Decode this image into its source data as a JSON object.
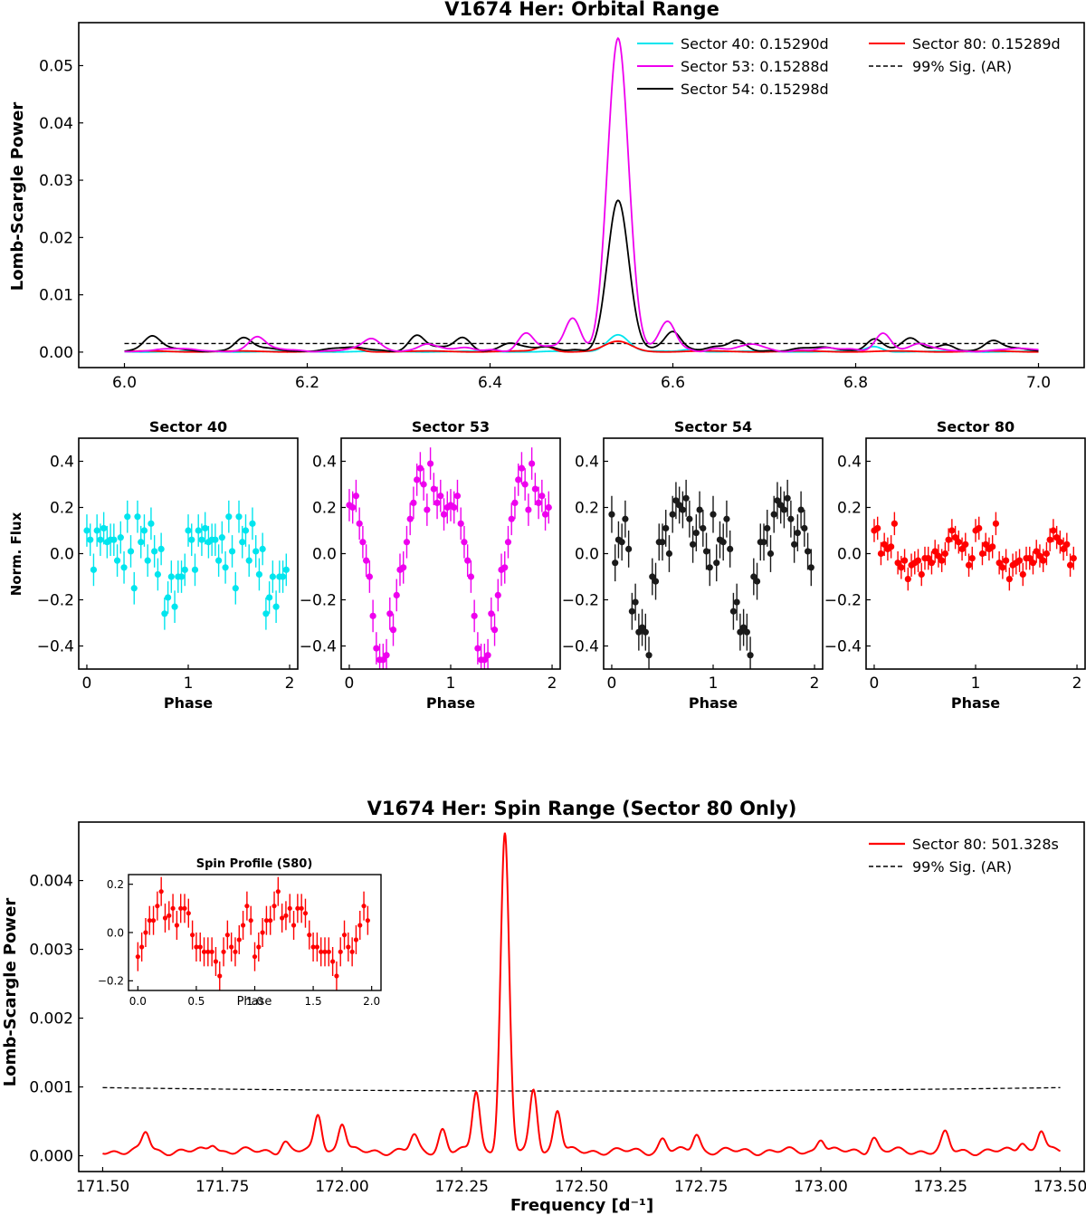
{
  "chart_data": [
    {
      "id": "orbital",
      "type": "line",
      "title": "V1674 Her: Orbital Range",
      "xlabel": "",
      "ylabel": "Lomb-Scargle Power",
      "xlim": [
        5.95,
        7.05
      ],
      "ylim": [
        -0.0027,
        0.0575
      ],
      "xticks": [
        "6.0",
        "6.2",
        "6.4",
        "6.6",
        "6.8",
        "7.0"
      ],
      "yticks": [
        "0.00",
        "0.01",
        "0.02",
        "0.03",
        "0.04",
        "0.05"
      ],
      "legend_position": "top-right",
      "peak_frequency": 6.54,
      "series": [
        {
          "name": "Sector 40: 0.15290d",
          "color": "#00e5ee",
          "peak": 0.003,
          "width": 0.016,
          "side": 0.0003,
          "base": 0.00015
        },
        {
          "name": "Sector 53: 0.15288d",
          "color": "#ee00ee",
          "peak": 0.0545,
          "width": 0.016,
          "side": 0.0048,
          "base": 0.0006
        },
        {
          "name": "Sector 54: 0.15298d",
          "color": "#000000",
          "peak": 0.0258,
          "width": 0.016,
          "side": 0.0032,
          "base": 0.0008
        },
        {
          "name": "Sector 80: 0.15289d",
          "color": "#ff0000",
          "peak": 0.0017,
          "width": 0.02,
          "side": 0.0001,
          "base": 0.0002
        }
      ],
      "significance": {
        "name": "99% Sig. (AR)",
        "color": "#000000",
        "value": 0.0015
      }
    },
    {
      "id": "phase-s40",
      "type": "scatter",
      "title": "Sector 40",
      "xlabel": "Phase",
      "ylabel": "Norm. Flux",
      "color": "#00e5ee",
      "amplitude": 0.07,
      "error": 0.07,
      "xlim": [
        -0.08,
        2.08
      ],
      "ylim": [
        -0.5,
        0.5
      ],
      "xticks": [
        "0",
        "1",
        "2"
      ],
      "yticks": [
        "0.4",
        "0.2",
        "0.0",
        "−0.2",
        "−0.4"
      ],
      "values": [
        0.1,
        0.06,
        -0.07,
        0.1,
        0.06,
        0.11,
        0.05,
        0.06,
        0.06,
        -0.03,
        0.07,
        -0.06,
        0.16,
        0.01,
        -0.15,
        0.16,
        0.05,
        0.1,
        -0.03,
        0.13,
        0.01,
        -0.09,
        0.02,
        -0.26,
        -0.19,
        -0.1,
        -0.23,
        -0.1,
        -0.1,
        -0.07
      ]
    },
    {
      "id": "phase-s53",
      "type": "scatter",
      "title": "Sector 53",
      "xlabel": "Phase",
      "ylabel": "",
      "color": "#ee00ee",
      "amplitude": 0.4,
      "error": 0.07,
      "xlim": [
        -0.08,
        2.08
      ],
      "ylim": [
        -0.5,
        0.5
      ],
      "xticks": [
        "0",
        "1",
        "2"
      ],
      "yticks": [
        "0.4",
        "0.2",
        "0.0",
        "−0.2",
        "−0.4"
      ],
      "values": [
        0.21,
        0.2,
        0.25,
        0.13,
        0.05,
        -0.03,
        -0.1,
        -0.27,
        -0.41,
        -0.46,
        -0.46,
        -0.44,
        -0.26,
        -0.33,
        -0.18,
        -0.07,
        -0.06,
        0.05,
        0.15,
        0.22,
        0.32,
        0.37,
        0.3,
        0.19,
        0.39,
        0.28,
        0.22,
        0.25,
        0.17,
        0.2
      ]
    },
    {
      "id": "phase-s54",
      "type": "scatter",
      "title": "Sector 54",
      "xlabel": "Phase",
      "ylabel": "",
      "color": "#1a1a1a",
      "amplitude": 0.37,
      "error": 0.08,
      "xlim": [
        -0.08,
        2.08
      ],
      "ylim": [
        -0.5,
        0.5
      ],
      "xticks": [
        "0",
        "1",
        "2"
      ],
      "yticks": [
        "0.4",
        "0.2",
        "0.0",
        "−0.2",
        "−0.4"
      ],
      "values": [
        0.17,
        -0.04,
        0.06,
        0.05,
        0.15,
        0.02,
        -0.25,
        -0.21,
        -0.34,
        -0.32,
        -0.34,
        -0.44,
        -0.1,
        -0.12,
        0.05,
        0.05,
        0.11,
        0.0,
        0.17,
        0.23,
        0.21,
        0.19,
        0.24,
        0.15,
        0.04,
        0.09,
        0.19,
        0.11,
        0.01,
        -0.06
      ]
    },
    {
      "id": "phase-s80",
      "type": "scatter",
      "title": "Sector 80",
      "xlabel": "Phase",
      "ylabel": "",
      "color": "#ff0000",
      "amplitude": 0.04,
      "error": 0.05,
      "xlim": [
        -0.08,
        2.08
      ],
      "ylim": [
        -0.5,
        0.5
      ],
      "xticks": [
        "0",
        "1",
        "2"
      ],
      "yticks": [
        "0.4",
        "0.2",
        "0.0",
        "−0.2",
        "−0.4"
      ],
      "values": [
        0.1,
        0.11,
        0.0,
        0.04,
        0.02,
        0.03,
        0.13,
        -0.04,
        -0.06,
        -0.03,
        -0.11,
        -0.05,
        -0.04,
        -0.03,
        -0.09,
        -0.02,
        -0.02,
        -0.04,
        0.01,
        -0.01,
        -0.03,
        0.0,
        0.06,
        0.1,
        0.07,
        0.05,
        0.02,
        0.04,
        -0.05,
        -0.02
      ]
    },
    {
      "id": "spin",
      "type": "line",
      "title": "V1674 Her: Spin Range (Sector 80 Only)",
      "xlabel": "Frequency [d⁻¹]",
      "ylabel": "Lomb-Scargle Power",
      "xlim": [
        171.45,
        173.55
      ],
      "ylim": [
        -0.00023,
        0.00485
      ],
      "xticks": [
        "171.50",
        "171.75",
        "172.00",
        "172.25",
        "172.50",
        "172.75",
        "173.00",
        "173.25",
        "173.50"
      ],
      "yticks": [
        "0.000",
        "0.001",
        "0.002",
        "0.003",
        "0.004"
      ],
      "legend_position": "top-right",
      "series": [
        {
          "name": "Sector 80: 501.328s",
          "color": "#ff0000"
        }
      ],
      "significance": {
        "name": "99% Sig. (AR)",
        "color": "#000000",
        "values": [
          0.00099,
          0.00094,
          0.00099
        ]
      },
      "peak_frequency": 172.34,
      "peak_power": 0.0046,
      "features": [
        {
          "f": 171.59,
          "p": 0.00028
        },
        {
          "f": 171.73,
          "p": 0.00012
        },
        {
          "f": 171.88,
          "p": 0.00014
        },
        {
          "f": 171.95,
          "p": 0.00055
        },
        {
          "f": 172.0,
          "p": 0.00042
        },
        {
          "f": 172.15,
          "p": 0.00022
        },
        {
          "f": 172.21,
          "p": 0.00032
        },
        {
          "f": 172.28,
          "p": 0.00088
        },
        {
          "f": 172.4,
          "p": 0.0009
        },
        {
          "f": 172.45,
          "p": 0.0006
        },
        {
          "f": 172.67,
          "p": 0.00018
        },
        {
          "f": 172.74,
          "p": 0.00026
        },
        {
          "f": 173.0,
          "p": 0.0002
        },
        {
          "f": 173.11,
          "p": 0.0002
        },
        {
          "f": 173.26,
          "p": 0.00025
        },
        {
          "f": 173.42,
          "p": 0.00015
        },
        {
          "f": 173.46,
          "p": 0.00032
        }
      ]
    },
    {
      "id": "spin-inset",
      "type": "scatter",
      "title": "Spin Profile (S80)",
      "xlabel": "Phase",
      "ylabel": "",
      "color": "#ff0000",
      "error": 0.06,
      "xlim": [
        -0.08,
        2.08
      ],
      "ylim": [
        -0.24,
        0.24
      ],
      "xticks": [
        "0.0",
        "0.5",
        "1.0",
        "1.5",
        "2.0"
      ],
      "yticks": [
        "0.2",
        "0.0",
        "−0.2"
      ],
      "values": [
        -0.1,
        -0.06,
        0.0,
        0.05,
        0.05,
        0.11,
        0.17,
        0.06,
        0.07,
        0.1,
        0.03,
        0.1,
        0.1,
        0.08,
        -0.01,
        -0.06,
        -0.06,
        -0.08,
        -0.08,
        -0.08,
        -0.12,
        -0.18,
        -0.08,
        -0.01,
        -0.06,
        -0.08,
        -0.03,
        0.03,
        0.11,
        0.05
      ]
    }
  ]
}
